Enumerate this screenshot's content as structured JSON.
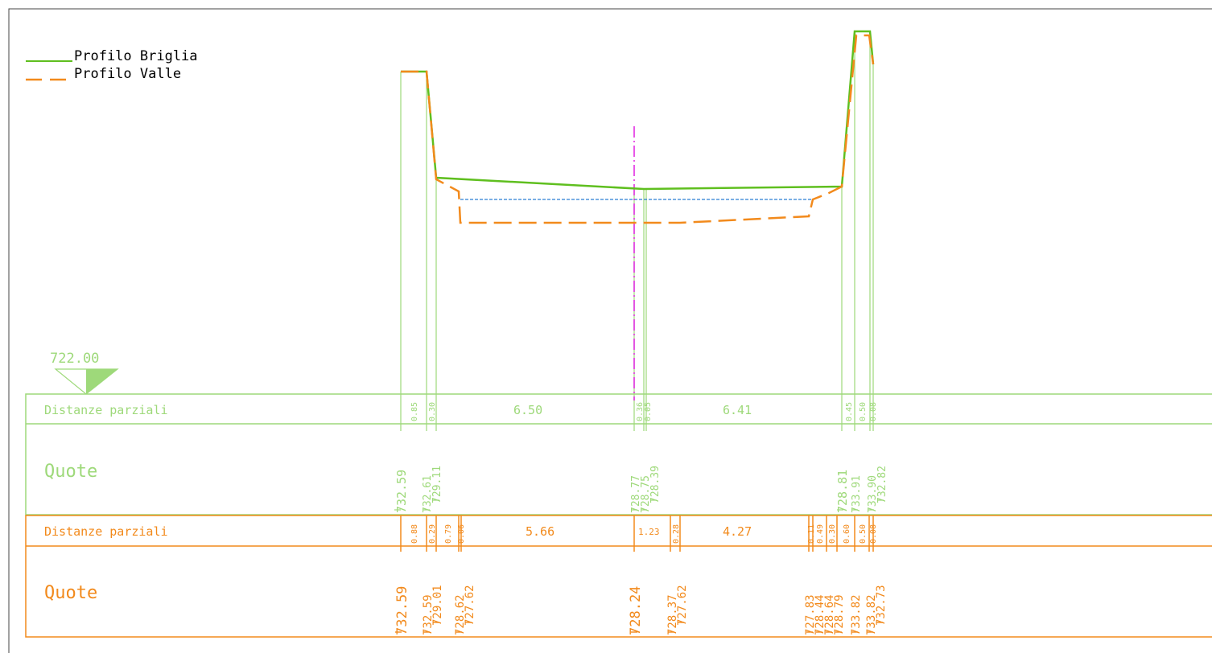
{
  "legend": {
    "briglia_label": "Profilo Briglia",
    "valle_label": "Profilo Valle"
  },
  "datum": {
    "label": "722.00"
  },
  "colors": {
    "green_line": "#5fbf1f",
    "green_text": "#9ed97a",
    "orange": "#f28a1c",
    "blue_water": "#2a7fd4",
    "axis_magenta": "#e020e0",
    "frame": "#444444"
  },
  "green_table": {
    "distances_header": "Distanze parziali",
    "heights_header": "Quote",
    "distances": [
      "0.85",
      "0.30",
      "6.50",
      "0.36",
      "0.05",
      "6.41",
      "0.45",
      "0.50",
      "0.08"
    ],
    "heights": [
      "732.59",
      "732.61",
      "729.11",
      "728.77",
      "728.75",
      "728.39",
      "728.81",
      "733.91",
      "733.90",
      "732.82"
    ]
  },
  "orange_table": {
    "distances_header": "Distanze parziali",
    "heights_header": "Quote",
    "distances": [
      "0.88",
      "0.29",
      "0.79",
      "0.06",
      "5.66",
      "1.23",
      "0.28",
      "4.27",
      "0.11",
      "0.49",
      "0.30",
      "0.60",
      "0.50",
      "0.08"
    ],
    "heights": [
      "732.59",
      "732.59",
      "729.01",
      "728.62",
      "727.62",
      "728.24",
      "728.37",
      "727.62",
      "727.83",
      "728.44",
      "728.64",
      "728.79",
      "733.82",
      "733.82",
      "732.73"
    ]
  }
}
